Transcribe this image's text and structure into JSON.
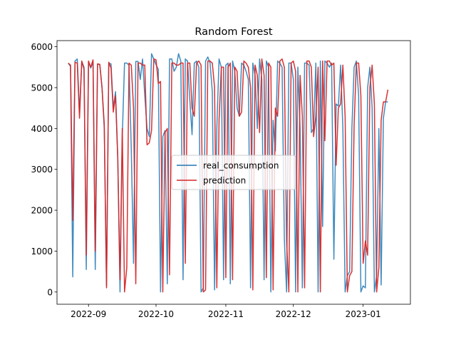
{
  "chart_data": {
    "type": "line",
    "title": "Random Forest",
    "xlabel": "",
    "ylabel": "",
    "x_start": "2022-08-23",
    "x_end": "2023-01-17",
    "xlim": [
      "2022-08-18",
      "2023-01-22"
    ],
    "ylim": [
      -300,
      6150
    ],
    "x_ticks": [
      {
        "date": "2022-09-01",
        "label": "2022-09"
      },
      {
        "date": "2022-10-01",
        "label": "2022-10"
      },
      {
        "date": "2022-11-01",
        "label": "2022-11"
      },
      {
        "date": "2022-12-01",
        "label": "2022-12"
      },
      {
        "date": "2023-01-01",
        "label": "2023-01"
      }
    ],
    "y_ticks": [
      0,
      1000,
      2000,
      3000,
      4000,
      5000,
      6000
    ],
    "legend_position": "center",
    "grid": false,
    "series": [
      {
        "name": "real_consumption",
        "color": "#1f77b4",
        "values": [
          5600,
          5520,
          370,
          5650,
          5700,
          4400,
          5640,
          5500,
          550,
          5620,
          5480,
          5620,
          550,
          5580,
          5560,
          5000,
          4000,
          150,
          5600,
          5580,
          4500,
          4900,
          3300,
          0,
          3800,
          5600,
          5600,
          5550,
          3500,
          700,
          5640,
          5640,
          5200,
          5700,
          4800,
          4000,
          3800,
          5830,
          5700,
          5560,
          5450,
          0,
          3800,
          3950,
          200,
          5700,
          5700,
          5400,
          5500,
          5830,
          5650,
          300,
          5700,
          5650,
          4700,
          3850,
          5600,
          5650,
          5500,
          0,
          100,
          5650,
          5750,
          5600,
          4900,
          50,
          4000,
          5700,
          5500,
          300,
          5550,
          5600,
          200,
          5650,
          5400,
          4500,
          4300,
          5600,
          5550,
          5400,
          5200,
          100,
          5600,
          5300,
          4000,
          5700,
          5200,
          300,
          5650,
          5500,
          0,
          4200,
          3450,
          5650,
          5600,
          5500,
          1300,
          0,
          5600,
          5600,
          5200,
          0,
          5500,
          4000,
          100,
          5600,
          5600,
          5550,
          3900,
          4000,
          5600,
          0,
          5650,
          1600,
          5650,
          5600,
          5500,
          5600,
          800,
          4600,
          4550,
          5550,
          4000,
          0,
          400,
          500,
          4000,
          5500,
          5650,
          4800,
          0,
          150,
          100,
          5000,
          5500,
          4500,
          0,
          400,
          4000,
          170,
          4250,
          4650,
          4650
        ]
      },
      {
        "name": "prediction",
        "color": "#d62728",
        "values": [
          5600,
          5550,
          1750,
          5620,
          5600,
          4250,
          5650,
          5450,
          900,
          5650,
          5500,
          5680,
          1000,
          5580,
          5570,
          5000,
          4100,
          100,
          5620,
          5480,
          4400,
          4800,
          3250,
          300,
          4000,
          0,
          600,
          5600,
          5550,
          4500,
          200,
          5600,
          5600,
          5550,
          5550,
          3600,
          3650,
          3950,
          5700,
          5680,
          5100,
          5150,
          0,
          3900,
          4000,
          420,
          5600,
          5600,
          5550,
          5550,
          5600,
          5600,
          700,
          5600,
          5600,
          4500,
          4300,
          5600,
          5650,
          5550,
          0,
          50,
          5650,
          5650,
          5600,
          5000,
          100,
          4200,
          5500,
          5500,
          350,
          5500,
          5600,
          300,
          5500,
          5400,
          4300,
          4400,
          5650,
          5600,
          5500,
          5000,
          50,
          5550,
          5300,
          3900,
          5700,
          5300,
          350,
          5600,
          5500,
          50,
          4500,
          4300,
          5650,
          5700,
          5500,
          1250,
          0,
          5600,
          5650,
          5400,
          0,
          5300,
          4300,
          100,
          5650,
          5650,
          5500,
          3800,
          4300,
          5500,
          0,
          5650,
          3700,
          5650,
          5650,
          5550,
          5600,
          3100,
          4500,
          4600,
          5550,
          4300,
          0,
          400,
          500,
          4100,
          5600,
          5600,
          4800,
          700,
          1250,
          900,
          5000,
          5550,
          4600,
          0,
          600,
          4200,
          4650,
          4650,
          4950
        ]
      }
    ]
  }
}
